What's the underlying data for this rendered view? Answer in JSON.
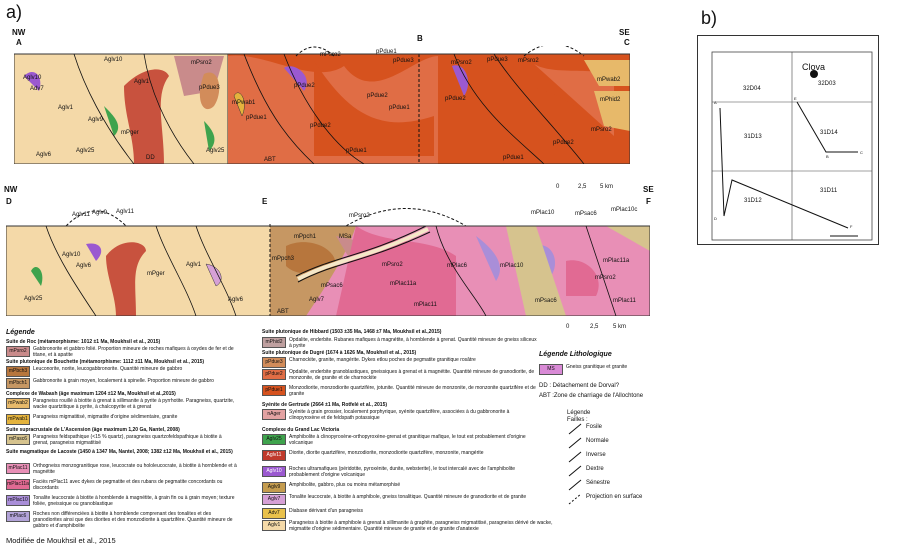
{
  "panels": {
    "a": "a)",
    "b": "b)"
  },
  "section1": {
    "left": "NW",
    "right": "SE",
    "corner_left": "A",
    "corner_mid": "B",
    "corner_right": "C",
    "units": [
      "Aglv10",
      "Adv7",
      "Aglv1",
      "Aglv9",
      "Aglv6",
      "Aglv25",
      "Aglv10",
      "Aglv1",
      "mPger",
      "DD",
      "Aglv25",
      "mPsro2",
      "pPdue3",
      "mPwab1",
      "pPdue1",
      "pPdue2",
      "mPsro2",
      "pPdue1",
      "pPdue3",
      "pPdue2",
      "ABT",
      "pPdue1",
      "pPdue2",
      "pPdue1",
      "mPsro2",
      "pPdue3",
      "mPsro2",
      "mPwab2",
      "mPhid2",
      "mPsro2",
      "pPdue2",
      "pPdue1",
      "pPdue2"
    ],
    "scale": [
      "0",
      "2,5",
      "5 km"
    ]
  },
  "section2": {
    "left": "NW",
    "right": "SE",
    "corner_left": "D",
    "corner_mid": "E",
    "corner_right": "F",
    "units": [
      "Aglv11",
      "Aglv9",
      "Aglv11",
      "Aglv10",
      "Aglv6",
      "Aglv25",
      "Aglv1",
      "mPger",
      "Aglv6",
      "mPsro2",
      "mPpch1",
      "MSa",
      "mPpch3",
      "mPsac6",
      "Aglv7",
      "ABT",
      "mPsro2",
      "mPlac11a",
      "mPlac6",
      "mPlac10",
      "mPlac11",
      "mPlac10",
      "mPsac6",
      "mPlac10c",
      "mPlac11a",
      "mPsro2",
      "mPsac6",
      "mPlac11"
    ],
    "scale": [
      "0",
      "2,5",
      "5 km"
    ]
  },
  "legend": {
    "title": "Légende",
    "suites": [
      {
        "title": "Suite de Roc (métamorphisme: 1012 ±1 Ma, Moukhsil et al., 2015)",
        "rows": [
          {
            "code": "mPsro2",
            "color": "#c98b8b",
            "desc": "Gabbronorite et gabbro folié. Proportion mineure de roches mafiques à oxydes de fer et de titane, et à apatite"
          }
        ]
      },
      {
        "title": "Suite plutonique de Bouchette (métamorphisme: 1112 ±11 Ma, Moukhsil et al., 2015)",
        "rows": [
          {
            "code": "mPbch3",
            "color": "#b7763d",
            "desc": "Leuconorite, norite, leucogabbronorite. Quantité mineure de gabbro"
          },
          {
            "code": "mPbch1",
            "color": "#c69763",
            "desc": "Gabbronorite à grain moyen, localement à spinelle. Proportion mineure de gabbro"
          }
        ]
      },
      {
        "title": "Complexe de Wabash (âge maximum 1204 ±12 Ma, Moukhsil et al.,2015)",
        "rows": [
          {
            "code": "mPwab2",
            "color": "#e7b96a",
            "desc": "Paragneiss rouillé à biotite à grenat à sillimanite à pyrite à pyrrhotite. Paragneiss, quartzite, wacke quartzitique à pyrite, à chalcopyrite et à grenat"
          },
          {
            "code": "mPwab1",
            "color": "#e4b33d",
            "desc": "Paragneiss migmatitisé, migmatite d'origine sédimentaire, granite"
          }
        ]
      },
      {
        "title": "Suite supracrustale de L'Ascension (âge maximum 1,20 Ga, Nantel, 2008)",
        "rows": [
          {
            "code": "mPasc6",
            "color": "#d6c38e",
            "desc": "Paragneiss feldspathique (<15 % quartz), paragneiss quartzofeldspathique à biotite à grenat, paragneiss migmatitisé"
          }
        ]
      },
      {
        "title": "Suite magmatique de Lacoste (1450 à 1347 Ma, Nantel, 2008; 1382 ±12 Ma, Moukhsil et al., 2015)",
        "rows": [
          {
            "code": "mPlac11",
            "color": "#e88fb6",
            "desc": "Orthogneiss monzogranitique rose, leucocrate ou hololeucocrate, à biotite à hornblende et à magnétite"
          },
          {
            "code": "mPlac11a",
            "color": "#e16a93",
            "desc": "Faciès mPlac11 avec dykes de pegmatite et des rubans de pegmatite concordants ou discordants"
          },
          {
            "code": "mPlac10",
            "color": "#a98ed8",
            "desc": "Tonalite leucocrate à biotite à hornblende à magnétite, à grain fin ou à grain moyen; texture foliée, gneissique ou granoblastique"
          },
          {
            "code": "mPlac6",
            "color": "#b2a3d8",
            "desc": "Roches non différenciées à biotite à hornblende comprenant des tonalites et des granodiorites ainsi que des diorites et des monzodiorite à quartzifère. Quantité mineure de gabbro et d'amphibolite"
          }
        ]
      }
    ],
    "suites_mid": [
      {
        "title": "Suite plutonique de Hibbard (1503 ±35 Ma, 1468 ±7 Ma, Moukhsil et al.,2015)",
        "rows": [
          {
            "code": "mPhid2",
            "color": "#bfa0a0",
            "desc": "Opdalite, enderbite. Rubanes mafiques à magnétite, à hornblende à grenat. Quantité mineure de gneiss siliceux à pyrite"
          }
        ]
      },
      {
        "title": "Suite plutonique de Dugré (1674 à 1626 Ma, Moukhsil et al., 2015)",
        "rows": [
          {
            "code": "pPdue3",
            "color": "#d28c5a",
            "desc": "Charnockite, granite, mangérite. Dykes etlou poches de pegmatite granitique rosâtre"
          },
          {
            "code": "pPdue2",
            "color": "#e06d45",
            "desc": "Opdalite, enderbite granoblastiques, gneissiques à grenat et à magnétite. Quantité mineure de granodiorite, de monzonite, de granite et de charnockite"
          },
          {
            "code": "pPdue1",
            "color": "#d6521e",
            "desc": "Monzodiorite, monzodiorite quartzifère, jotunite. Quantité mineure de monzonite, de monzonite quartzifère et de granite"
          }
        ]
      },
      {
        "title": "Syénite de Gertrude (2664 ±1 Ma, Rotfelé et al., 2015)",
        "rows": [
          {
            "code": "nAger",
            "color": "#e3a2a2",
            "desc": "Syénite à grain grossier, localement porphyrique, syénite quartzifère, associées à du gabbronorite à clinopyroxène et de feldspath potassique"
          }
        ]
      },
      {
        "title": "Complexe du Grand Lac Victoria",
        "rows": [
          {
            "code": "Aglv25",
            "color": "#3fa34d",
            "desc": "Amphibolite à clinopyroxène-orthopyroxène-grenat et granitique mafique, le tout est probablement d'origine volcanique"
          },
          {
            "code": "Aglv11",
            "color": "#c0392b",
            "desc": "Diorite, diorite quartzifère, monzodiorite, monzodiorite quartzifère, monzonite, mangérite"
          },
          {
            "code": "Aglv10",
            "color": "#9b59d0",
            "desc": "Roches ultramafiques (péridotite, pyroxénite, dunite, websterite), le tout intercalé avec de l'amphibolite probablement d'origine volcanique"
          },
          {
            "code": "Aglv9",
            "color": "#c49c4f",
            "desc": "Amphibolite, gabbro, plus ou moins métamorphisé"
          },
          {
            "code": "Aglv7",
            "color": "#d6a0d6",
            "desc": "Tonalite leucocrate, à biotite à amphibole, gneiss tonalitique. Quantité mineure de granodiorite et de granite"
          },
          {
            "code": "Adv7",
            "color": "#e9c14b",
            "desc": "Diabase dérivant d'un paragneiss"
          },
          {
            "code": "Aglv1",
            "color": "#f4d9a8",
            "desc": "Paragneiss à biotite à amphibole à grenat à sillimanite à graphite, paragneiss migmatitisé, paragneiss dérivé de wacke, migmatite d'origine sédimentaire. Quantité mineure de granite et de granite d'anatexie"
          }
        ]
      }
    ],
    "litho_title": "Légende Lithologique",
    "litho_row": {
      "code": "MS",
      "color": "#d98ad6",
      "desc": "Gneiss granitique et granite"
    },
    "notes": [
      "DD : Détachement de Dorval?",
      "ABT :Zone de charriage de l'Allochtone"
    ],
    "faults_title": "Légende",
    "faults_sub": "Failles :",
    "faults": [
      "Fosile",
      "Normale",
      "Inverse",
      "Dextre",
      "Sénestre",
      "Projection en surface"
    ]
  },
  "mapb": {
    "labels": [
      "32D04",
      "32D03",
      "31D13",
      "31D14",
      "31D12",
      "31D11"
    ],
    "town": "Clova",
    "letters": [
      "A",
      "B",
      "C",
      "D",
      "E",
      "F"
    ]
  },
  "credit": "Modifiée de Moukhsil et al., 2015"
}
